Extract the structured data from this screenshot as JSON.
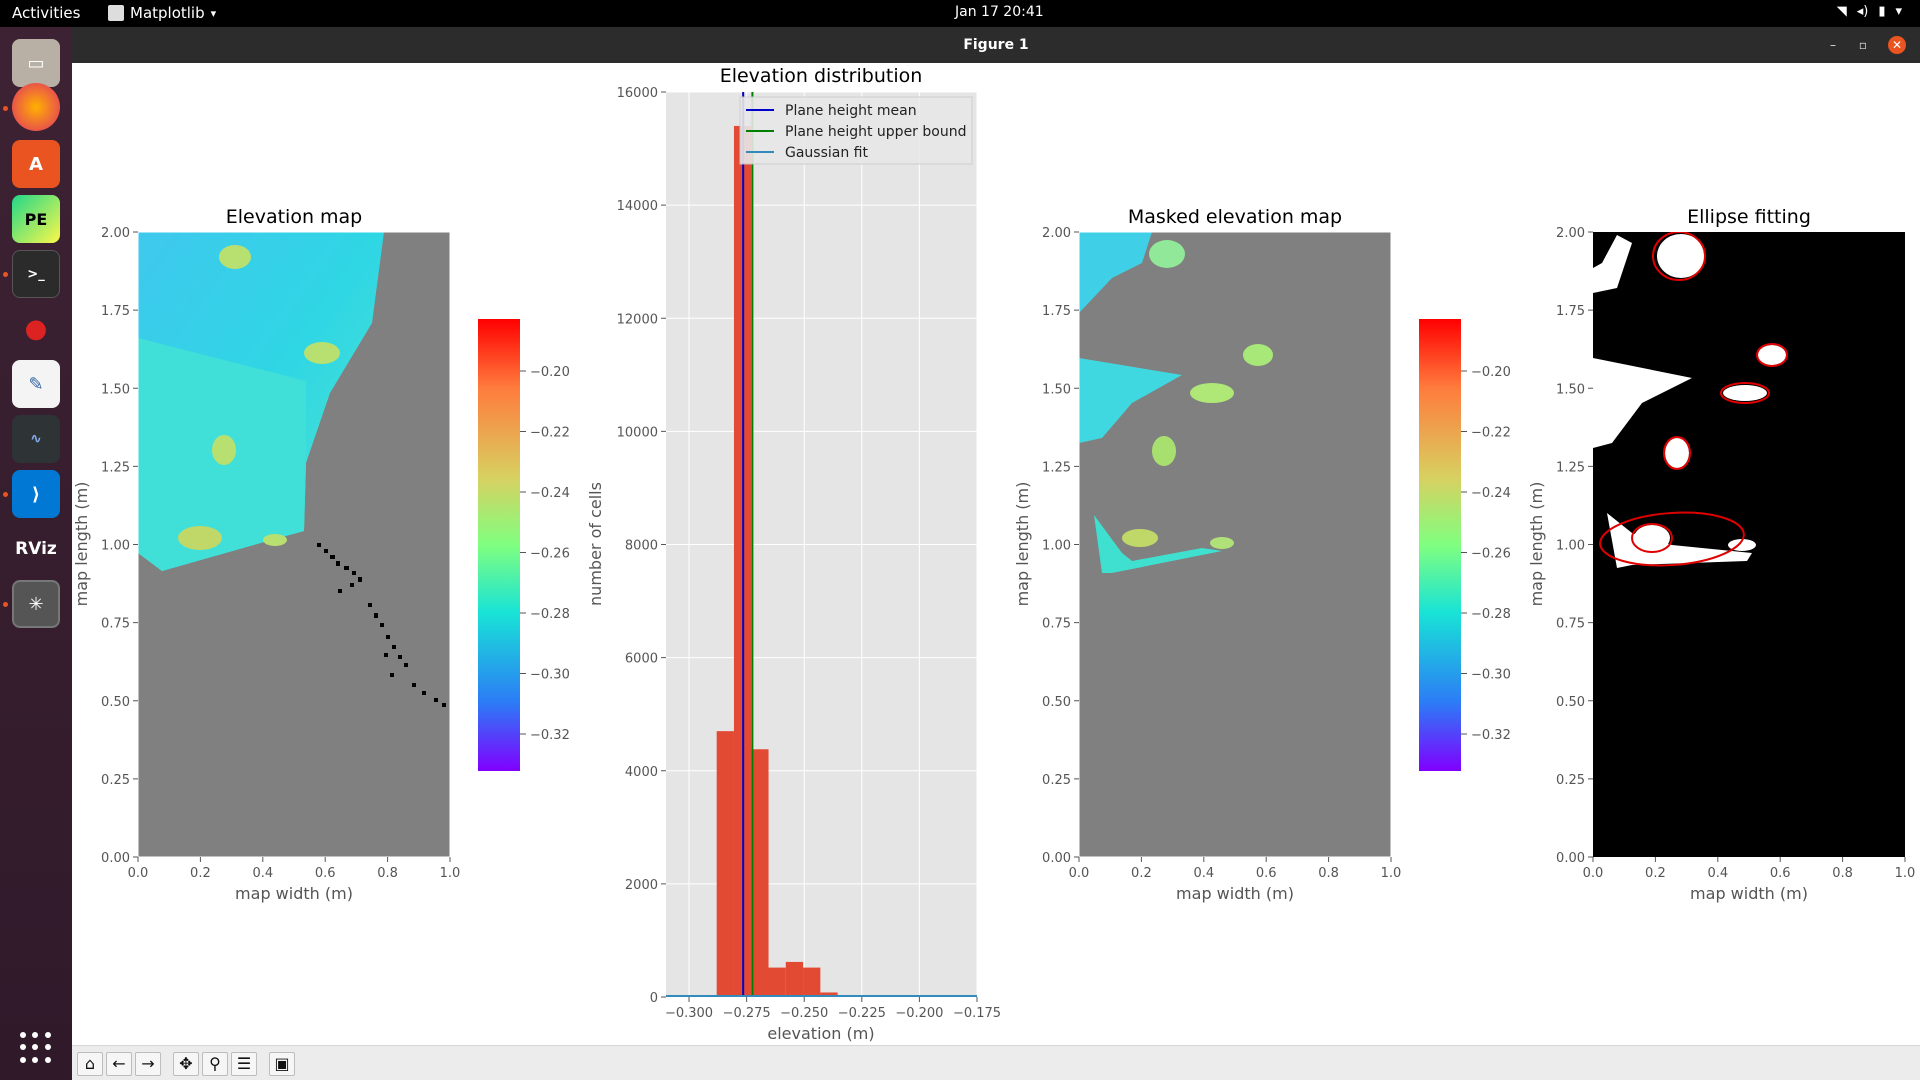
{
  "topbar": {
    "activities": "Activities",
    "app_name": "Matplotlib",
    "clock": "Jan 17  20:41"
  },
  "window": {
    "title": "Figure 1"
  },
  "dock": {
    "items": [
      "files-icon",
      "firefox-icon",
      "software-icon",
      "pycharm-icon",
      "terminal-icon",
      "bug-icon",
      "text-editor-icon",
      "system-monitor-icon",
      "vscode-icon",
      "rviz-icon",
      "matplotlib-icon"
    ]
  },
  "colors": {
    "hist_bar": "#e24a33",
    "mean_line": "#0000cc",
    "upper_bound_line": "#008000",
    "gaussian_line": "#348abd",
    "mask_gray": "#808080",
    "ellipse": "#e00000"
  },
  "chart_data": [
    {
      "type": "heatmap",
      "title": "Elevation map",
      "xlabel": "map width (m)",
      "ylabel": "map length (m)",
      "xlim": [
        0.0,
        1.0
      ],
      "ylim": [
        0.0,
        2.0
      ],
      "xticks": [
        "0.0",
        "0.2",
        "0.4",
        "0.6",
        "0.8",
        "1.0"
      ],
      "yticks": [
        "0.00",
        "0.25",
        "0.50",
        "0.75",
        "1.00",
        "1.25",
        "1.50",
        "1.75",
        "2.00"
      ],
      "colorbar": {
        "colormap": "rainbow",
        "ticks": [
          "−0.20",
          "−0.22",
          "−0.24",
          "−0.26",
          "−0.28",
          "−0.30",
          "−0.32"
        ]
      }
    },
    {
      "type": "bar",
      "title": "Elevation distribution",
      "xlabel": "elevation (m)",
      "ylabel": "number of cells",
      "xlim": [
        -0.31,
        -0.175
      ],
      "ylim": [
        0,
        16000
      ],
      "xticks": [
        "−0.300",
        "−0.275",
        "−0.250",
        "−0.225",
        "−0.200",
        "−0.175"
      ],
      "yticks": [
        "0",
        "2000",
        "4000",
        "6000",
        "8000",
        "10000",
        "12000",
        "14000",
        "16000"
      ],
      "bins": [
        {
          "x0": -0.288,
          "x1": -0.2805,
          "count": 4700
        },
        {
          "x0": -0.2805,
          "x1": -0.273,
          "count": 15400
        },
        {
          "x0": -0.273,
          "x1": -0.2655,
          "count": 4380
        },
        {
          "x0": -0.2655,
          "x1": -0.258,
          "count": 520
        },
        {
          "x0": -0.258,
          "x1": -0.2505,
          "count": 620
        },
        {
          "x0": -0.2505,
          "x1": -0.243,
          "count": 520
        },
        {
          "x0": -0.243,
          "x1": -0.2355,
          "count": 80
        }
      ],
      "mean_x": -0.2765,
      "upper_bound_x": -0.2725,
      "gaussian_fit_y": 0,
      "legend": {
        "placement": "top-right",
        "entries": [
          "Plane height mean",
          "Plane height upper bound",
          "Gaussian fit"
        ]
      }
    },
    {
      "type": "heatmap",
      "title": "Masked elevation map",
      "xlabel": "map width (m)",
      "ylabel": "map length (m)",
      "xlim": [
        0.0,
        1.0
      ],
      "ylim": [
        0.0,
        2.0
      ],
      "xticks": [
        "0.0",
        "0.2",
        "0.4",
        "0.6",
        "0.8",
        "1.0"
      ],
      "yticks": [
        "0.00",
        "0.25",
        "0.50",
        "0.75",
        "1.00",
        "1.25",
        "1.50",
        "1.75",
        "2.00"
      ],
      "colorbar": {
        "colormap": "rainbow",
        "ticks": [
          "−0.20",
          "−0.22",
          "−0.24",
          "−0.26",
          "−0.28",
          "−0.30",
          "−0.32"
        ]
      }
    },
    {
      "type": "heatmap",
      "title": "Ellipse fitting",
      "xlabel": "map width (m)",
      "ylabel": "map length (m)",
      "xlim": [
        0.0,
        1.0
      ],
      "ylim": [
        0.0,
        2.0
      ],
      "xticks": [
        "0.0",
        "0.2",
        "0.4",
        "0.6",
        "0.8",
        "1.0"
      ],
      "yticks": [
        "0.00",
        "0.25",
        "0.50",
        "0.75",
        "1.00",
        "1.25",
        "1.50",
        "1.75",
        "2.00"
      ]
    }
  ],
  "toolbar": {
    "buttons": [
      "home-icon",
      "back-icon",
      "forward-icon",
      "pan-icon",
      "zoom-icon",
      "configure-icon",
      "save-icon"
    ]
  }
}
